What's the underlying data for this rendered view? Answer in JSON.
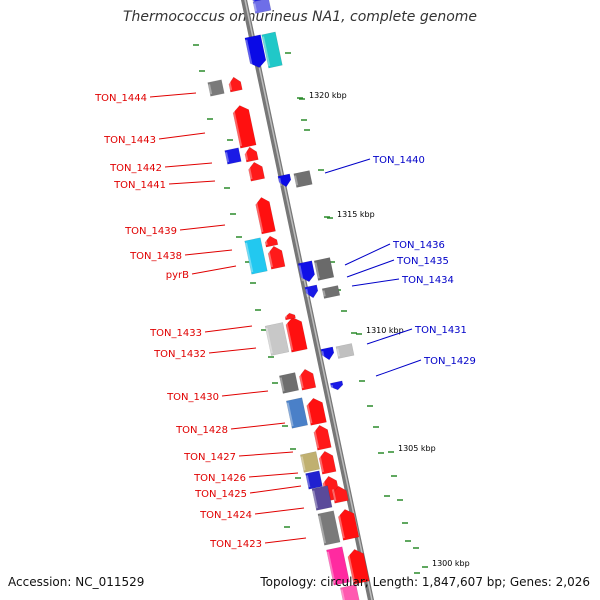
{
  "title": "Thermococcus onnurineus NA1, complete genome",
  "accession": "Accession: NC_011529",
  "summary": "Topology: circular; Length: 1,847,607 bp; Genes: 2,026",
  "colors": {
    "backbone": "#8c8c8c",
    "forward_label": "#e00000",
    "reverse_label": "#0000c8",
    "tick": "#2a8a2a"
  },
  "scale_marks": [
    "1320 kbp",
    "1315 kbp",
    "1310 kbp",
    "1305 kbp",
    "1300 kbp"
  ],
  "forward_genes": [
    "TON_1444",
    "TON_1443",
    "TON_1442",
    "TON_1441",
    "TON_1439",
    "TON_1438",
    "pyrB",
    "TON_1433",
    "TON_1432",
    "TON_1430",
    "TON_1428",
    "TON_1427",
    "TON_1426",
    "TON_1425",
    "TON_1424",
    "TON_1423"
  ],
  "reverse_genes": [
    "TON_1440",
    "TON_1436",
    "TON_1435",
    "TON_1434",
    "TON_1431",
    "TON_1429"
  ]
}
